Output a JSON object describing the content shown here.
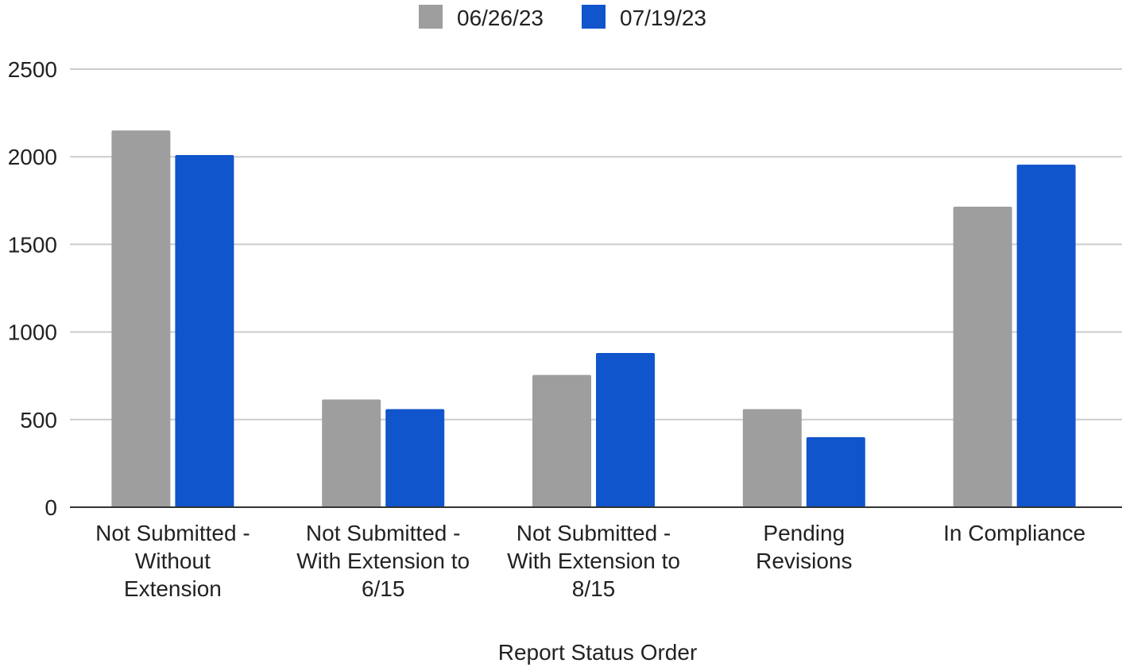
{
  "chart_data": {
    "type": "bar",
    "title": "",
    "xlabel": "Report Status Order",
    "ylabel": "",
    "ylim": [
      0,
      2500
    ],
    "yticks": [
      0,
      500,
      1000,
      1500,
      2000,
      2500
    ],
    "grid": true,
    "legend_position": "top-center",
    "categories": [
      [
        "Not Submitted -",
        "Without",
        "Extension"
      ],
      [
        "Not Submitted -",
        "With Extension to",
        "6/15"
      ],
      [
        "Not Submitted -",
        "With Extension to",
        "8/15"
      ],
      [
        "Pending",
        "Revisions"
      ],
      [
        "In Compliance"
      ]
    ],
    "series": [
      {
        "name": "06/26/23",
        "color": "#9e9e9e",
        "values": [
          2150,
          615,
          755,
          560,
          1715
        ]
      },
      {
        "name": "07/19/23",
        "color": "#1155cc",
        "values": [
          2010,
          560,
          880,
          400,
          1955
        ]
      }
    ]
  }
}
